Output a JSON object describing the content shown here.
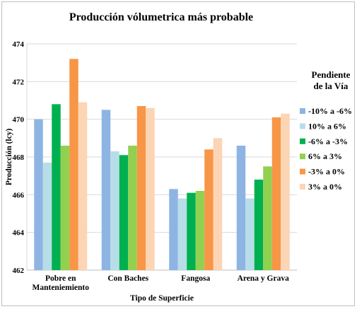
{
  "chart_data": {
    "type": "bar",
    "title": "Producción vólumetrica más probable",
    "xlabel": "Tipo de Superficie",
    "ylabel": "Producción (lcy)",
    "ylim": [
      462,
      474
    ],
    "yticks": [
      462,
      464,
      466,
      468,
      470,
      472,
      474
    ],
    "grid": true,
    "legend_position": "right",
    "legend_title": [
      "Pendiente",
      "de la Vía"
    ],
    "categories": [
      [
        "Pobre en",
        "Manteniemiento"
      ],
      [
        "Con Baches"
      ],
      [
        "Fangosa"
      ],
      [
        "Arena y Grava"
      ]
    ],
    "series": [
      {
        "name": "-10% a -6%",
        "color": "#8eb4e3",
        "values": [
          470.0,
          470.5,
          466.3,
          468.6
        ]
      },
      {
        "name": "10% a 6%",
        "color": "#b7dee8",
        "values": [
          467.7,
          468.3,
          465.8,
          465.8
        ]
      },
      {
        "name": "-6% a -3%",
        "color": "#00b050",
        "values": [
          470.8,
          468.1,
          466.1,
          466.8
        ]
      },
      {
        "name": "6% a 3%",
        "color": "#92d050",
        "values": [
          468.6,
          468.6,
          466.2,
          467.5
        ]
      },
      {
        "name": "-3% a 0%",
        "color": "#f79646",
        "values": [
          473.2,
          470.7,
          468.4,
          470.1
        ]
      },
      {
        "name": "3% a 0%",
        "color": "#fcd5b5",
        "values": [
          470.9,
          470.6,
          469.0,
          470.3
        ]
      }
    ]
  }
}
